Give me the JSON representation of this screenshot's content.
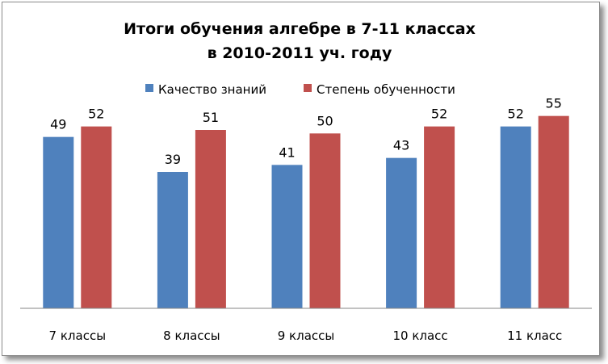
{
  "chart_data": {
    "type": "bar",
    "title_lines": [
      "Итоги обучения алгебре в 7-11 классах",
      "в 2010-2011 уч. году"
    ],
    "categories": [
      "7 классы",
      "8 классы",
      "9 классы",
      "10 класс",
      "11 класс"
    ],
    "series": [
      {
        "name": "Качество знаний",
        "values": [
          49,
          39,
          41,
          43,
          52
        ],
        "color": "#4f81bd"
      },
      {
        "name": "Степень обученности",
        "values": [
          52,
          51,
          50,
          52,
          55
        ],
        "color": "#c0504d"
      }
    ],
    "ylim": [
      0,
      60
    ],
    "legend_position": "top",
    "grid": false
  }
}
